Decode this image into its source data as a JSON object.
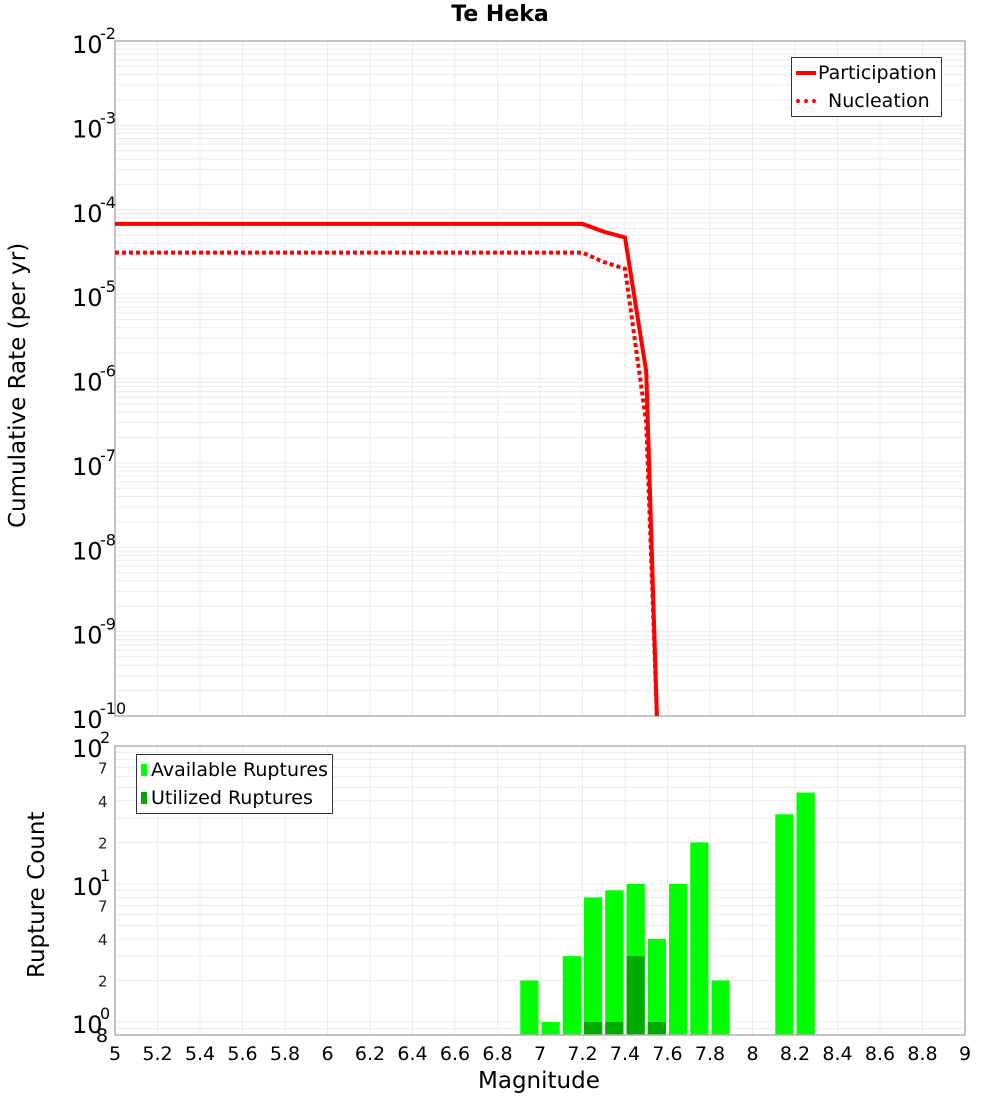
{
  "page": {
    "title": "Te Heka"
  },
  "top_chart": {
    "ylabel": "Cumulative Rate (per yr)",
    "legend": [
      {
        "label": "Participation",
        "style": "solid",
        "color": "#ff0000"
      },
      {
        "label": "Nucleation",
        "style": "dotted",
        "color": "#ff0000"
      }
    ]
  },
  "bottom_chart": {
    "ylabel": "Rupture Count",
    "xlabel": "Magnitude",
    "legend": [
      {
        "label": "Available Ruptures",
        "color": "#00ff00"
      },
      {
        "label": "Utilized Ruptures",
        "color": "#00aa00"
      }
    ]
  },
  "chart_data": [
    {
      "type": "line",
      "title": "Te Heka",
      "xlabel": "",
      "ylabel": "Cumulative Rate (per yr)",
      "yscale": "log",
      "xlim": [
        5,
        9
      ],
      "ylim": [
        1e-10,
        0.01
      ],
      "grid": true,
      "legend_position": "top-right",
      "y_tick_labels": [
        "10^-2",
        "10^-3",
        "10^-4",
        "10^-5",
        "10^-6",
        "10^-7",
        "10^-8",
        "10^-9",
        "10^-10"
      ],
      "series": [
        {
          "name": "Participation",
          "style": "solid",
          "color": "#ff0000",
          "x": [
            5.0,
            7.2,
            7.3,
            7.4,
            7.5,
            7.55
          ],
          "y": [
            6.8e-05,
            6.8e-05,
            5.5e-05,
            4.7e-05,
            1.2e-06,
            1e-10
          ]
        },
        {
          "name": "Nucleation",
          "style": "dotted",
          "color": "#ff0000",
          "x": [
            5.0,
            7.2,
            7.3,
            7.4,
            7.5,
            7.55
          ],
          "y": [
            3.1e-05,
            3.1e-05,
            2.4e-05,
            2e-05,
            3e-07,
            1e-10
          ]
        }
      ]
    },
    {
      "type": "bar",
      "title": "",
      "xlabel": "Magnitude",
      "ylabel": "Rupture Count",
      "yscale": "log",
      "xlim": [
        5,
        9
      ],
      "ylim": [
        0.8,
        100
      ],
      "grid": true,
      "legend_position": "top-left",
      "x_tick_labels": [
        "5",
        "5.2",
        "5.4",
        "5.6",
        "5.8",
        "6",
        "6.2",
        "6.4",
        "6.6",
        "6.8",
        "7",
        "7.2",
        "7.4",
        "7.6",
        "7.8",
        "8",
        "8.2",
        "8.4",
        "8.6",
        "8.8",
        "9"
      ],
      "y_tick_labels": [
        "10^0",
        "2",
        "4",
        "7",
        "10^1",
        "2",
        "4",
        "7",
        "10^2"
      ],
      "y_extra_label": "8",
      "bin_width": 0.1,
      "categories": [
        6.95,
        7.05,
        7.15,
        7.25,
        7.35,
        7.45,
        7.55,
        7.65,
        7.75,
        7.85,
        8.15,
        8.25
      ],
      "series": [
        {
          "name": "Available Ruptures",
          "color": "#00ff00",
          "values": [
            2,
            1,
            3,
            8,
            9,
            10,
            4,
            10,
            20,
            2,
            32,
            46
          ]
        },
        {
          "name": "Utilized Ruptures",
          "color": "#00aa00",
          "values": [
            0,
            0,
            0,
            1,
            1,
            3,
            1,
            0,
            0,
            0,
            0,
            0
          ]
        }
      ]
    }
  ]
}
